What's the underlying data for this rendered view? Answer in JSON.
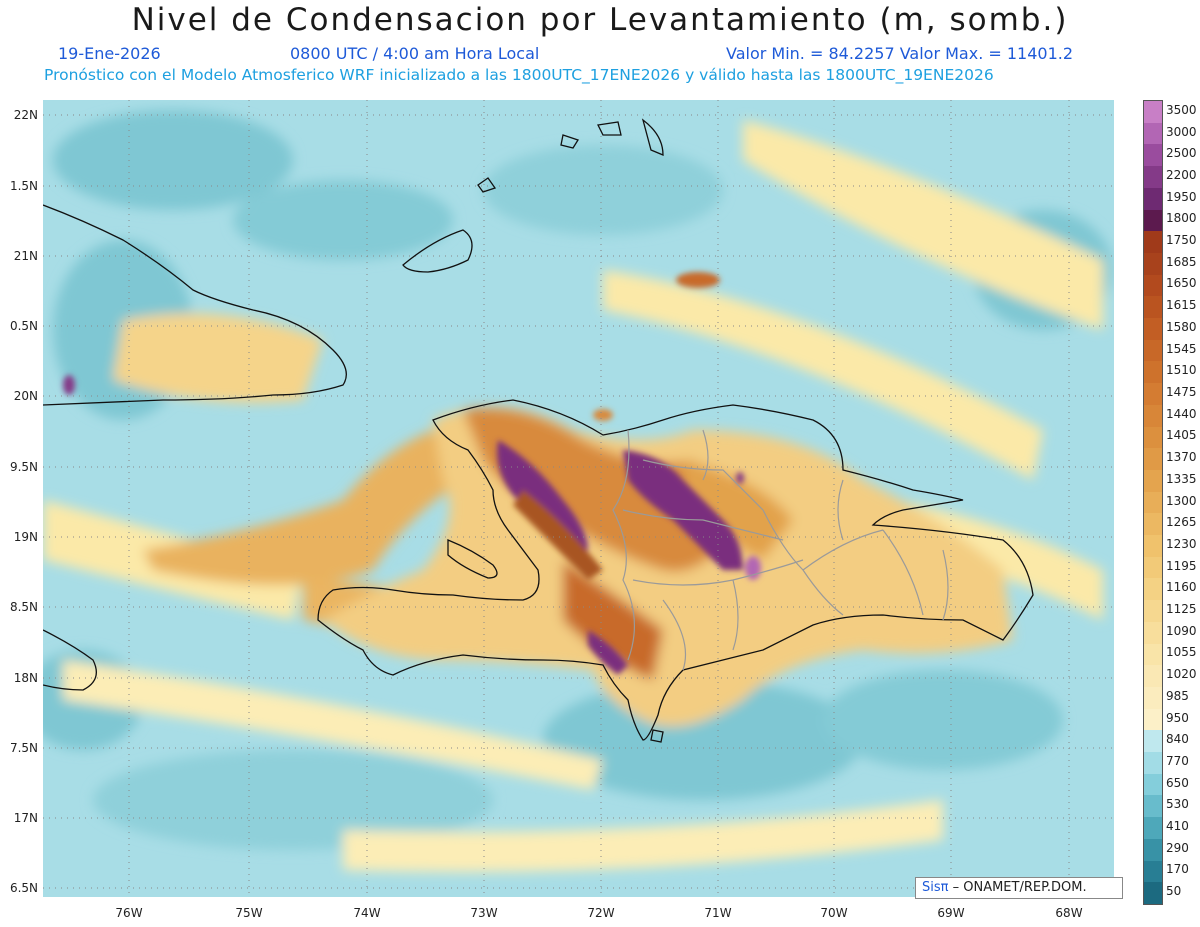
{
  "title": "Nivel de Condensacion por Levantamiento (m, somb.)",
  "date": "19-Ene-2026",
  "time": "0800 UTC / 4:00 am Hora Local",
  "minmax": "Valor Min. = 84.2257  Valor Max. = 11401.2",
  "forecast": "Pronóstico con el Modelo Atmosferico WRF inicializado a las 1800UTC_17ENE2026 y válido hasta las  1800UTC_19ENE2026",
  "lat_labels": [
    "22N",
    "1.5N",
    "21N",
    "0.5N",
    "20N",
    "9.5N",
    "19N",
    "8.5N",
    "18N",
    "7.5N",
    "17N",
    "6.5N"
  ],
  "lon_labels": [
    "76W",
    "75W",
    "74W",
    "73W",
    "72W",
    "71W",
    "70W",
    "69W",
    "68W"
  ],
  "legend_labels": [
    "3500",
    "3000",
    "2500",
    "2200",
    "1950",
    "1800",
    "1750",
    "1685",
    "1650",
    "1615",
    "1580",
    "1545",
    "1510",
    "1475",
    "1440",
    "1405",
    "1370",
    "1335",
    "1300",
    "1265",
    "1230",
    "1195",
    "1160",
    "1125",
    "1090",
    "1055",
    "1020",
    "985",
    "950",
    "840",
    "770",
    "650",
    "530",
    "410",
    "290",
    "170",
    "50"
  ],
  "legend_colors": [
    "#c87fc6",
    "#b266b4",
    "#9a4c9e",
    "#843a88",
    "#6e2a72",
    "#5c1a4e",
    "#a03a1a",
    "#a8421c",
    "#b24a1e",
    "#ba5420",
    "#c25e24",
    "#c86828",
    "#ce722c",
    "#d47c32",
    "#d88638",
    "#dc903e",
    "#e09a46",
    "#e4a44e",
    "#e8ae58",
    "#ecb862",
    "#f0c26c",
    "#f2ca78",
    "#f4d284",
    "#f6d890",
    "#f8de9c",
    "#f9e4a8",
    "#fae8b4",
    "#fbecbe",
    "#fcf0c8",
    "#bfe8ee",
    "#a2dce6",
    "#84cedb",
    "#68bccc",
    "#4ea8ba",
    "#3892a6",
    "#287e94",
    "#1c6a80"
  ],
  "credit_a": "Sisπ",
  "credit_b": "– ONAMET/REP.DOM."
}
